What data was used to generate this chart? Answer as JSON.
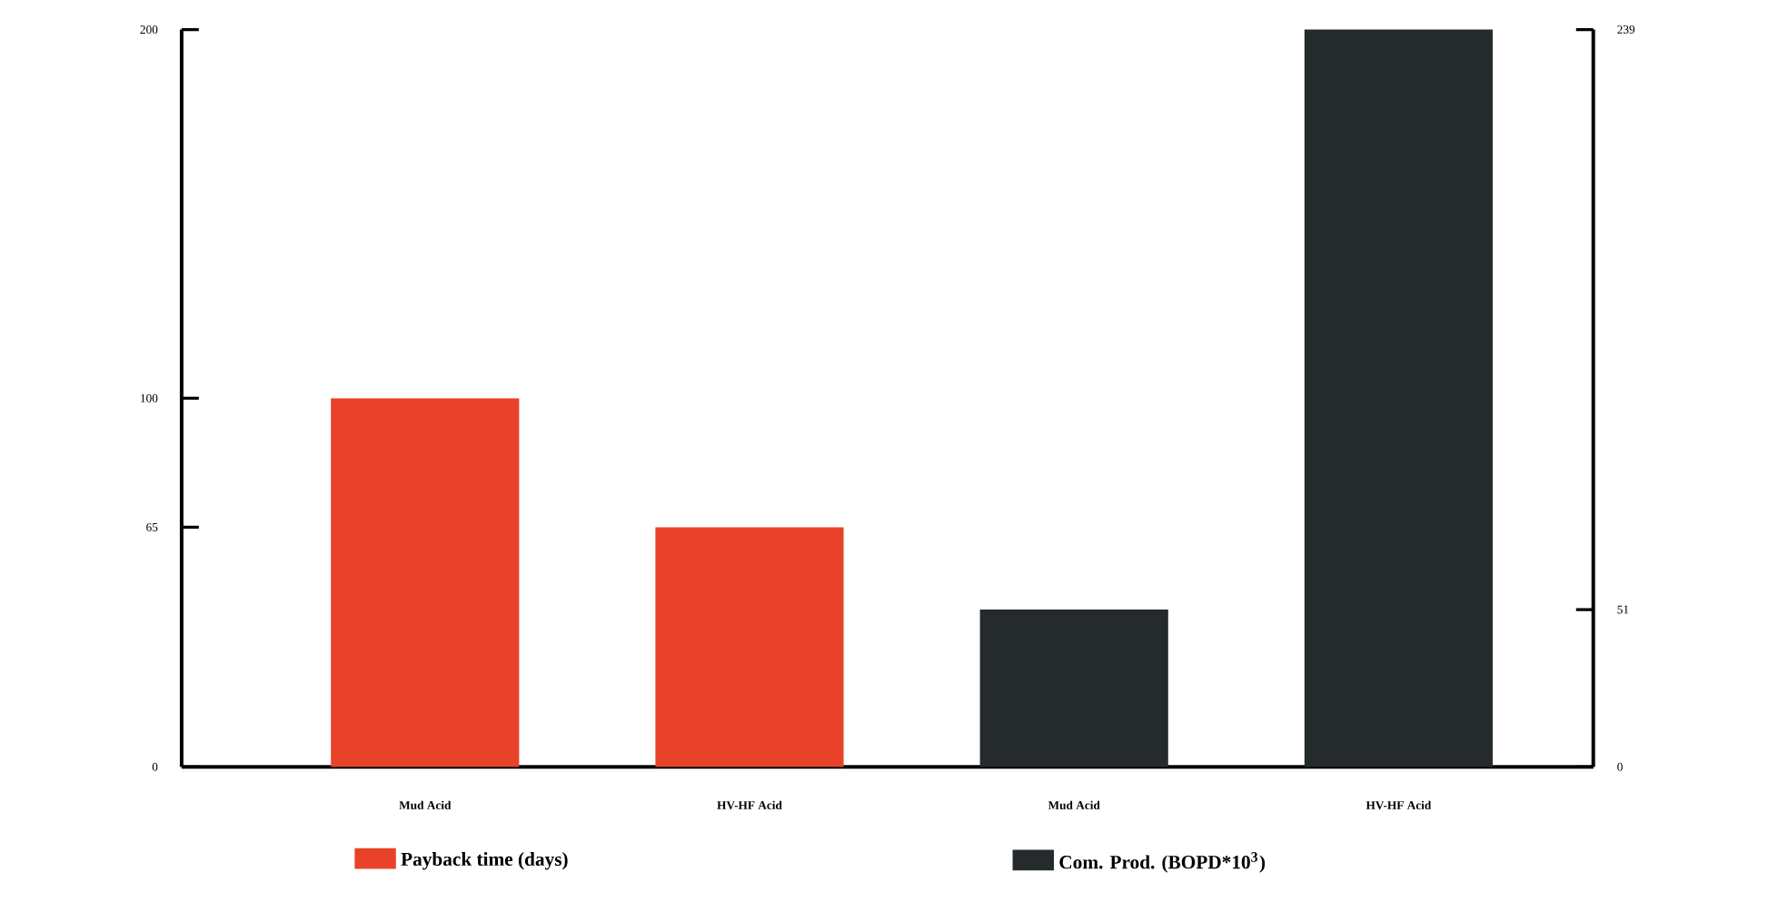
{
  "chart_data": {
    "type": "bar",
    "categories": [
      "Mud Acid",
      "HV-HF Acid",
      "Mud Acid",
      "HV-HF Acid"
    ],
    "series": [
      {
        "name": "Payback time (days)",
        "color": "#e8432a",
        "values": [
          100,
          65,
          null,
          null
        ]
      },
      {
        "name": "Com. Prod. (BOPD*10$^{3}$)",
        "color": "#252b2c",
        "values": [
          null,
          null,
          51,
          239
        ],
        "axis": "y2"
      }
    ],
    "ylim": [
      0,
      200
    ],
    "yticks": [
      0,
      65,
      100,
      200
    ],
    "y2lim": [
      0,
      239
    ],
    "y2ticks": [
      0,
      51,
      239
    ],
    "grid": false,
    "legend": "bottom"
  }
}
